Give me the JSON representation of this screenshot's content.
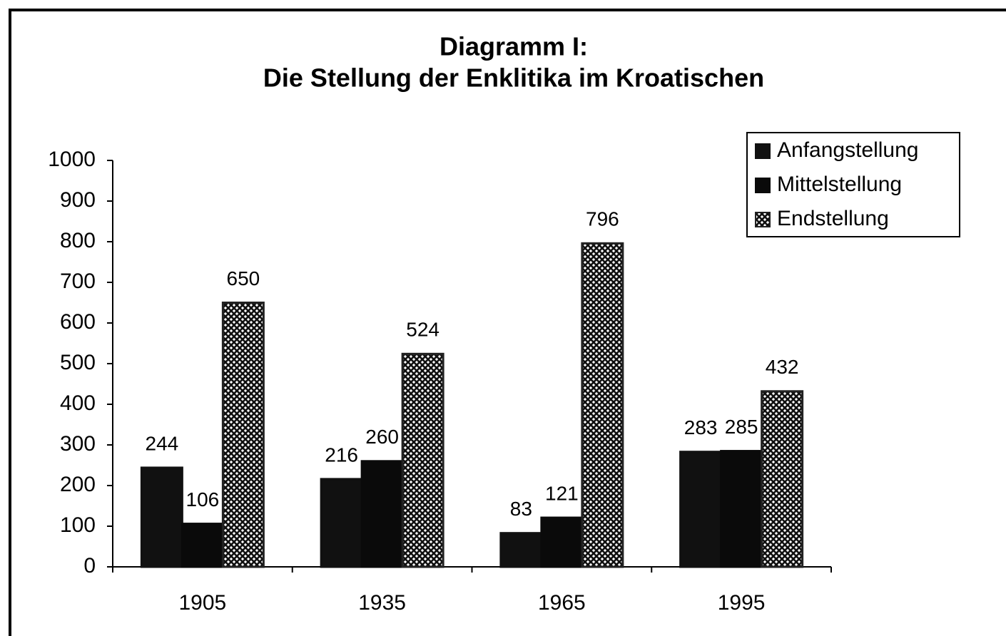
{
  "chart_data": {
    "type": "bar",
    "title": [
      "Diagramm I:",
      "Die Stellung der Enklitika im Kroatischen"
    ],
    "categories": [
      "1905",
      "1935",
      "1965",
      "1995"
    ],
    "series": [
      {
        "name": "Anfangstellung",
        "color": "#111111",
        "values": [
          244,
          216,
          83,
          283
        ]
      },
      {
        "name": "Mittelstellung",
        "color": "#0a0a0a",
        "values": [
          106,
          260,
          121,
          285
        ]
      },
      {
        "name": "Endstellung",
        "color": "#222222",
        "pattern": "crosshatch",
        "values": [
          650,
          524,
          796,
          432
        ]
      }
    ],
    "ylim": [
      0,
      1000
    ],
    "yticks": [
      0,
      100,
      200,
      300,
      400,
      500,
      600,
      700,
      800,
      900,
      1000
    ],
    "legend": "top-right"
  }
}
